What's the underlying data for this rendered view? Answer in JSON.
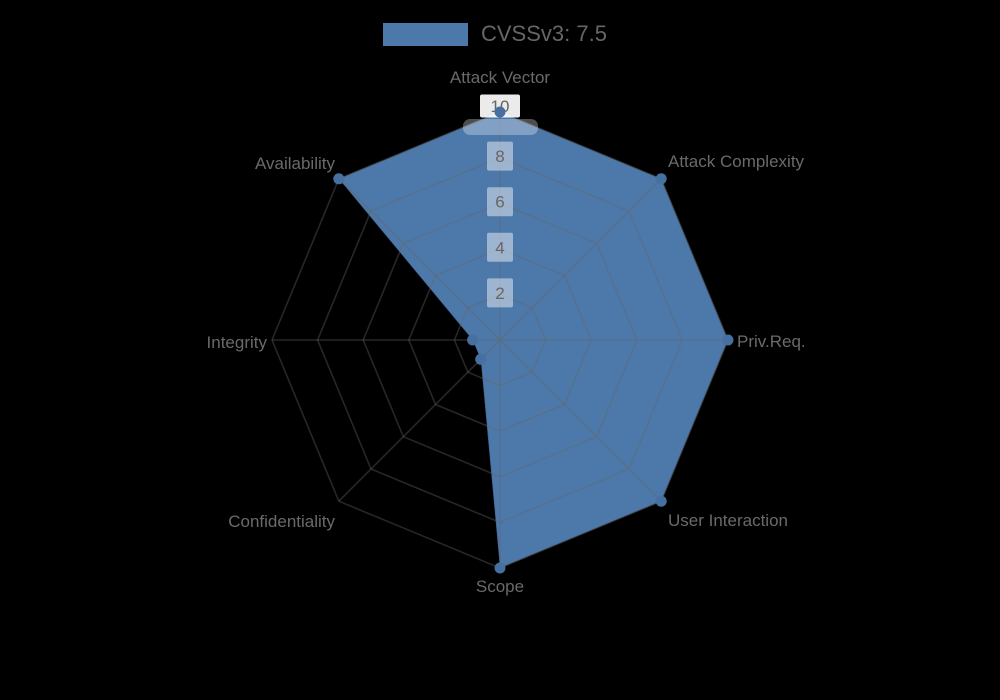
{
  "page": {
    "background_color": "#000000"
  },
  "legend": {
    "label": "CVSSv3: 7.5",
    "swatch_color": "#4d78aa"
  },
  "chart_data": {
    "type": "radar",
    "title": "CVSSv3: 7.5",
    "categories": [
      "Attack Vector",
      "Attack Complexity",
      "Priv.Req.",
      "User Interaction",
      "Scope",
      "Confidentiality",
      "Integrity",
      "Availability"
    ],
    "series": [
      {
        "name": "CVSSv3: 7.5",
        "values": [
          10,
          10,
          10,
          10,
          10,
          1.2,
          1.2,
          10
        ],
        "fill_color": "#4d78aa",
        "point_color": "#45709f"
      }
    ],
    "scale": {
      "min": 0,
      "max": 10,
      "tick_values": [
        2,
        4,
        6,
        8,
        10
      ],
      "tick_labels": [
        "2",
        "4",
        "6",
        "8",
        "10"
      ]
    },
    "legend_position": "top",
    "grid": true
  },
  "colors": {
    "background": "#000000",
    "axis_label": "#6a6a6a",
    "tick_label": "#666666",
    "grid_line": "rgba(102,102,102,0.38)",
    "tick_backdrop": "rgba(255,255,255,0.45)",
    "tick10_backdrop": "rgba(255,255,255,0.92)",
    "highlight_band": "rgba(255,255,255,0.3)"
  }
}
